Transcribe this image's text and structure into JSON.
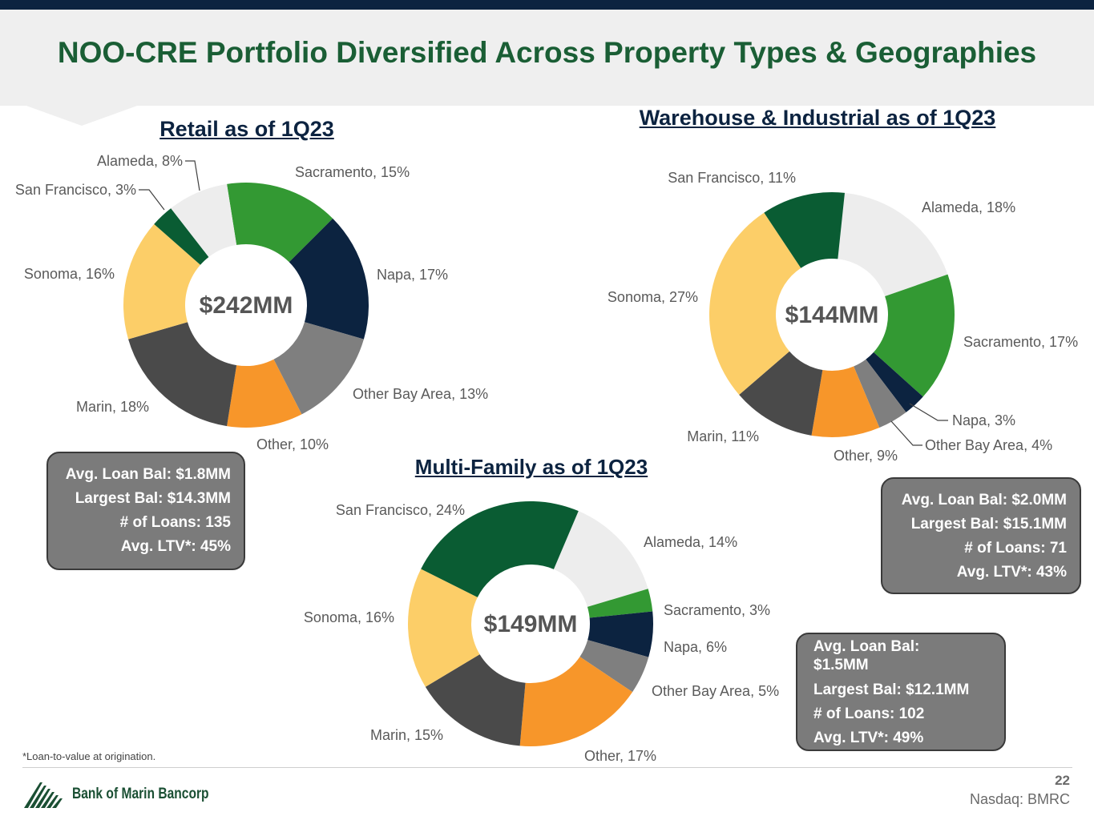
{
  "page_title": "NOO-CRE Portfolio Diversified Across Property Types & Geographies",
  "colors": {
    "brand_navy": "#0c2340",
    "brand_green": "#1a5e35",
    "sacramento": "#339933",
    "napa": "#0c2340",
    "other_bay_area": "#7f7f7f",
    "other": "#f7962a",
    "marin": "#4a4a4a",
    "sonoma": "#fcce68",
    "san_francisco": "#0a5c33",
    "alameda": "#ededed"
  },
  "chart_data": [
    {
      "id": "retail",
      "type": "pie",
      "title": "Retail as of 1Q23",
      "center_label": "$242MM",
      "slices": [
        {
          "name": "Sacramento",
          "value": 15,
          "label": "Sacramento, 15%",
          "color": "#339933"
        },
        {
          "name": "Napa",
          "value": 17,
          "label": "Napa, 17%",
          "color": "#0c2340"
        },
        {
          "name": "Other Bay Area",
          "value": 13,
          "label": "Other Bay Area, 13%",
          "color": "#7f7f7f"
        },
        {
          "name": "Other",
          "value": 10,
          "label": "Other, 10%",
          "color": "#f7962a"
        },
        {
          "name": "Marin",
          "value": 18,
          "label": "Marin, 18%",
          "color": "#4a4a4a"
        },
        {
          "name": "Sonoma",
          "value": 16,
          "label": "Sonoma, 16%",
          "color": "#fcce68"
        },
        {
          "name": "San Francisco",
          "value": 3,
          "label": "San Francisco, 3%",
          "color": "#0a5c33"
        },
        {
          "name": "Alameda",
          "value": 8,
          "label": "Alameda, 8%",
          "color": "#ededed"
        }
      ]
    },
    {
      "id": "warehouse",
      "type": "pie",
      "title": "Warehouse & Industrial as of 1Q23",
      "center_label": "$144MM",
      "slices": [
        {
          "name": "Alameda",
          "value": 18,
          "label": "Alameda, 18%",
          "color": "#ededed"
        },
        {
          "name": "Sacramento",
          "value": 17,
          "label": "Sacramento, 17%",
          "color": "#339933"
        },
        {
          "name": "Napa",
          "value": 3,
          "label": "Napa, 3%",
          "color": "#0c2340"
        },
        {
          "name": "Other Bay Area",
          "value": 4,
          "label": "Other Bay Area, 4%",
          "color": "#7f7f7f"
        },
        {
          "name": "Other",
          "value": 9,
          "label": "Other, 9%",
          "color": "#f7962a"
        },
        {
          "name": "Marin",
          "value": 11,
          "label": "Marin, 11%",
          "color": "#4a4a4a"
        },
        {
          "name": "Sonoma",
          "value": 27,
          "label": "Sonoma, 27%",
          "color": "#fcce68"
        },
        {
          "name": "San Francisco",
          "value": 11,
          "label": "San Francisco, 11%",
          "color": "#0a5c33"
        }
      ]
    },
    {
      "id": "multifamily",
      "type": "pie",
      "title": "Multi-Family as of 1Q23",
      "center_label": "$149MM",
      "slices": [
        {
          "name": "Alameda",
          "value": 14,
          "label": "Alameda, 14%",
          "color": "#ededed"
        },
        {
          "name": "Sacramento",
          "value": 3,
          "label": "Sacramento, 3%",
          "color": "#339933"
        },
        {
          "name": "Napa",
          "value": 6,
          "label": "Napa, 6%",
          "color": "#0c2340"
        },
        {
          "name": "Other Bay Area",
          "value": 5,
          "label": "Other Bay Area, 5%",
          "color": "#7f7f7f"
        },
        {
          "name": "Other",
          "value": 17,
          "label": "Other, 17%",
          "color": "#f7962a"
        },
        {
          "name": "Marin",
          "value": 15,
          "label": "Marin, 15%",
          "color": "#4a4a4a"
        },
        {
          "name": "Sonoma",
          "value": 16,
          "label": "Sonoma, 16%",
          "color": "#fcce68"
        },
        {
          "name": "San Francisco",
          "value": 24,
          "label": "San Francisco, 24%",
          "color": "#0a5c33"
        }
      ]
    }
  ],
  "stats": {
    "retail": {
      "avg_loan_bal": "Avg. Loan Bal: $1.8MM",
      "largest_bal": "Largest Bal: $14.3MM",
      "num_loans": "# of Loans: 135",
      "avg_ltv": "Avg. LTV*: 45%"
    },
    "warehouse": {
      "avg_loan_bal": "Avg. Loan Bal: $2.0MM",
      "largest_bal": "Largest Bal: $15.1MM",
      "num_loans": "# of Loans: 71",
      "avg_ltv": "Avg. LTV*: 43%"
    },
    "multifamily": {
      "avg_loan_bal": "Avg. Loan Bal: $1.5MM",
      "largest_bal": "Largest Bal: $12.1MM",
      "num_loans": "# of Loans: 102",
      "avg_ltv": "Avg. LTV*: 49%"
    }
  },
  "footnote": "*Loan-to-value at origination.",
  "footer": {
    "company": "Bank of Marin Bancorp",
    "page_number": "22",
    "ticker": "Nasdaq: BMRC"
  }
}
